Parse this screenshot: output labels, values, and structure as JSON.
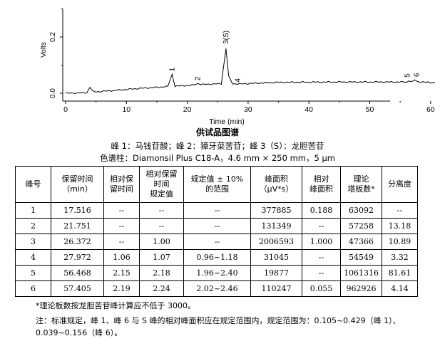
{
  "chromatogram": {
    "ylabel": "Volts",
    "xlabel": "Time (min)",
    "yticks": [
      "0.0",
      "0.2"
    ],
    "xticks": [
      "0",
      "10",
      "20",
      "30",
      "40",
      "50",
      "60",
      "70"
    ],
    "peak_labels": [
      "1",
      "2",
      "3(S)",
      "4",
      "5",
      "6"
    ],
    "line_color": "#000000"
  },
  "chart_data": {
    "type": "line",
    "title": "",
    "xlabel": "Time (min)",
    "ylabel": "Volts",
    "xlim": [
      0,
      75
    ],
    "ylim": [
      -0.02,
      0.3
    ],
    "x_ticks": [
      0,
      10,
      20,
      30,
      40,
      50,
      60,
      70
    ],
    "y_ticks": [
      0.0,
      0.2
    ],
    "series": [
      {
        "x": [
          0,
          3.5,
          4.0,
          4.5,
          5.0,
          8,
          12,
          16.8,
          17.5,
          18.0,
          21.0,
          21.75,
          22.3,
          25.6,
          26.37,
          26.8,
          27.5,
          27.97,
          28.5,
          35,
          45,
          56.2,
          56.47,
          56.8,
          57.1,
          57.4,
          57.8,
          62,
          66,
          72,
          74
        ],
        "y": [
          0.0,
          0.002,
          0.022,
          0.006,
          0.005,
          0.01,
          0.017,
          0.024,
          0.067,
          0.025,
          0.029,
          0.035,
          0.031,
          0.034,
          0.16,
          0.06,
          0.033,
          0.034,
          0.033,
          0.039,
          0.04,
          0.04,
          0.046,
          0.041,
          0.041,
          0.048,
          0.041,
          0.036,
          0.03,
          0.012,
          0.005
        ]
      }
    ],
    "peak_annotations": [
      {
        "label": "1",
        "x": 17.5
      },
      {
        "label": "2",
        "x": 21.75
      },
      {
        "label": "3(S)",
        "x": 26.37
      },
      {
        "label": "4",
        "x": 27.97
      },
      {
        "label": "5",
        "x": 56.47
      },
      {
        "label": "6",
        "x": 57.4
      }
    ],
    "grid": false
  },
  "caption": {
    "title": "供试品图谱",
    "peaks": "峰 1：马钱苷酸；峰 2：獐牙菜苦苷；峰 3（S）：龙胆苦苷",
    "column": "色谱柱：Diamonsil Plus C18-A，4.6 mm × 250 mm，5 μm"
  },
  "table": {
    "headers": [
      [
        "峰号"
      ],
      [
        "保留时间",
        "（min）"
      ],
      [
        "相对保",
        "留时间"
      ],
      [
        "相对保留",
        "时间",
        "规定值"
      ],
      [
        "规定值 ± 10%",
        "的范围"
      ],
      [
        "峰面积",
        "（μV*s）"
      ],
      [
        "相对",
        "峰面积"
      ],
      [
        "理论",
        "塔板数*"
      ],
      [
        "分离度"
      ]
    ],
    "rows": [
      [
        "1",
        "17.516",
        "--",
        "--",
        "--",
        "377885",
        "0.188",
        "63092",
        "--"
      ],
      [
        "2",
        "21.751",
        "--",
        "--",
        "--",
        "131349",
        "--",
        "57258",
        "13.18"
      ],
      [
        "3",
        "26.372",
        "--",
        "1.00",
        "--",
        "2006593",
        "1.000",
        "47366",
        "10.89"
      ],
      [
        "4",
        "27.972",
        "1.06",
        "1.07",
        "0.96~1.18",
        "31045",
        "--",
        "54549",
        "3.32"
      ],
      [
        "5",
        "56.468",
        "2.15",
        "2.18",
        "1.96~2.40",
        "19877",
        "--",
        "1061316",
        "81.61"
      ],
      [
        "6",
        "57.405",
        "2.19",
        "2.24",
        "2.02~2.46",
        "110247",
        "0.055",
        "962926",
        "4.14"
      ]
    ]
  },
  "notes": {
    "plate": "*理论板数按龙胆苦苷峰计算应不低于 3000。",
    "rule": "注：标准规定，峰 1、峰 6 与 S 峰的相对峰面积应在规定范围内，规定范围为：0.105~0.429（峰 1）、0.039~0.156（峰 6）。"
  }
}
